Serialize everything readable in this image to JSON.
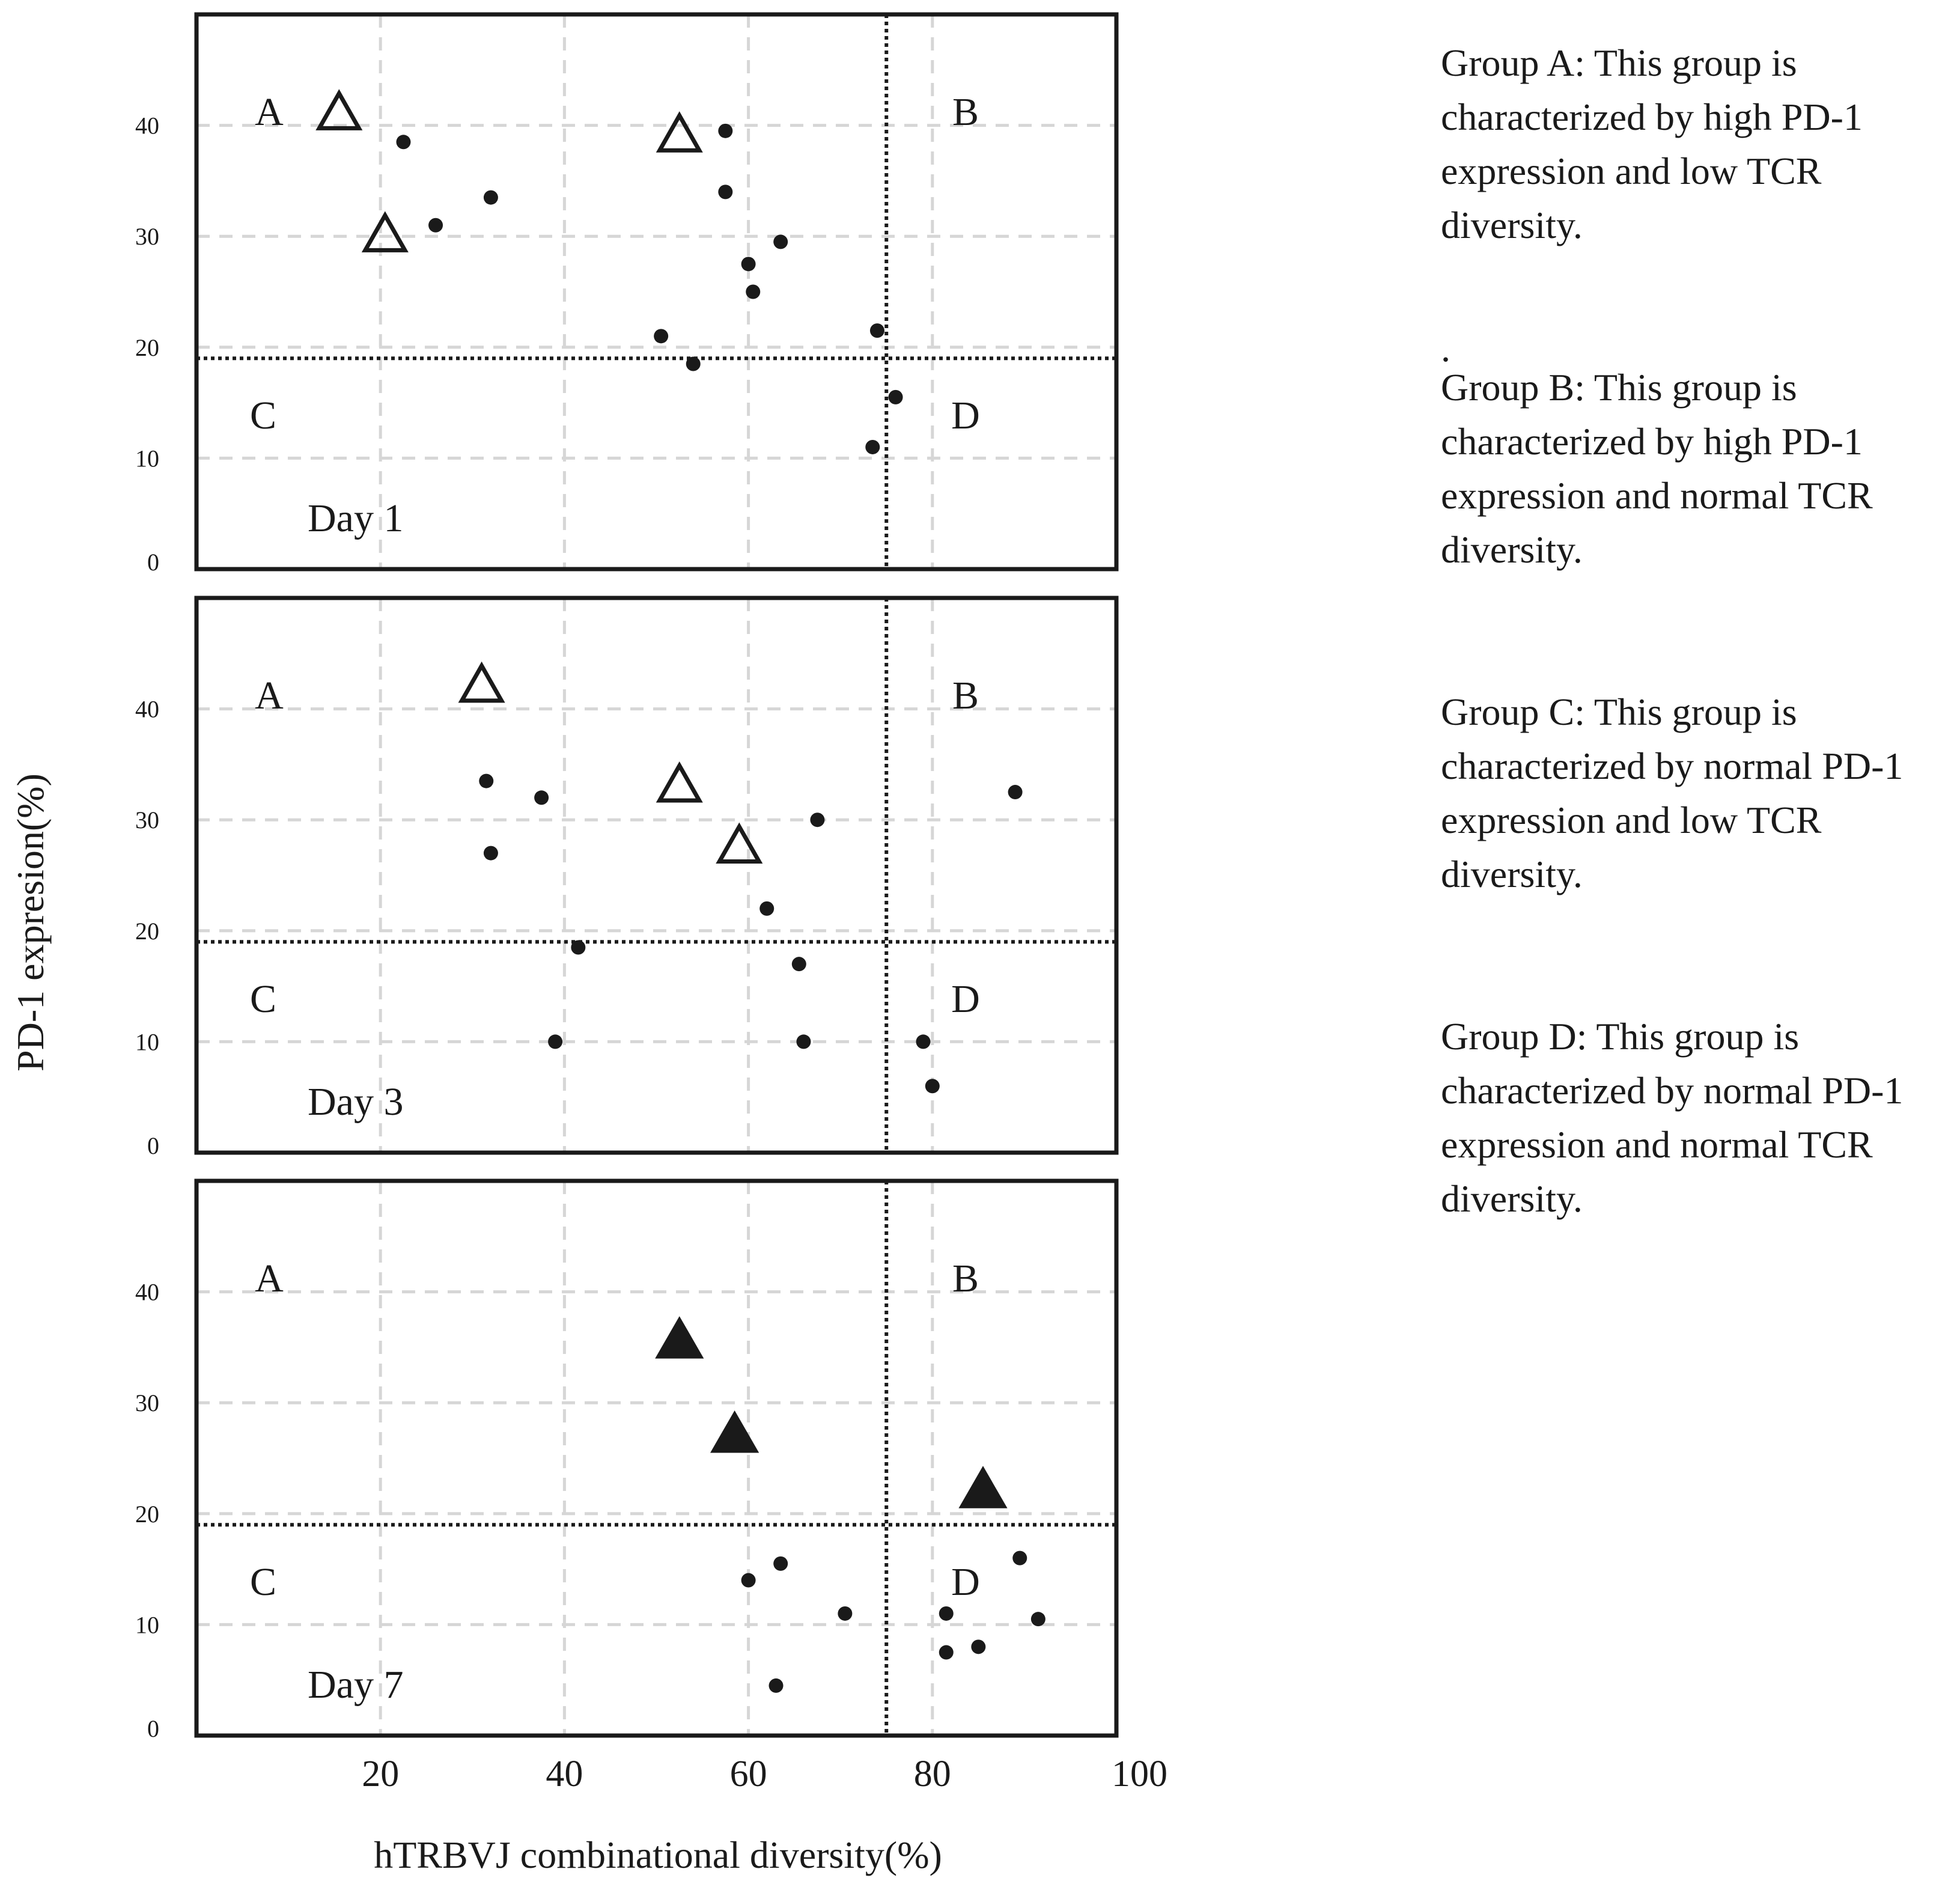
{
  "chart_data": {
    "type": "scatter",
    "xlabel": "hTRBVJ combinational diversity(%)",
    "ylabel": "PD-1 expresion(%)",
    "xlim": [
      0,
      100
    ],
    "ylim": [
      0,
      50
    ],
    "x_ticks": [
      20,
      40,
      60,
      80,
      100
    ],
    "y_ticks": [
      0,
      10,
      20,
      30,
      40
    ],
    "grid": true,
    "threshold_lines": {
      "x": 75,
      "y": 19
    },
    "quadrant_labels": [
      "A",
      "B",
      "C",
      "D"
    ],
    "panels": [
      {
        "title": "Day 1",
        "series": [
          {
            "name": "open triangles",
            "marker": "triangle-open",
            "points": [
              [
                15.5,
                41
              ],
              [
                20.5,
                30
              ],
              [
                52.5,
                39
              ]
            ]
          },
          {
            "name": "dots",
            "marker": "dot",
            "points": [
              [
                22.5,
                38.5
              ],
              [
                26,
                31
              ],
              [
                32,
                33.5
              ],
              [
                57.5,
                39.5
              ],
              [
                57.5,
                34
              ],
              [
                60,
                27.5
              ],
              [
                60.5,
                25
              ],
              [
                63.5,
                29.5
              ],
              [
                50.5,
                21
              ],
              [
                54,
                18.5
              ],
              [
                74,
                21.5
              ],
              [
                76,
                15.5
              ],
              [
                73.5,
                11
              ]
            ]
          }
        ]
      },
      {
        "title": "Day 3",
        "series": [
          {
            "name": "open triangles",
            "marker": "triangle-open",
            "points": [
              [
                31,
                42
              ],
              [
                52.5,
                33
              ],
              [
                59,
                27.5
              ]
            ]
          },
          {
            "name": "dots",
            "marker": "dot",
            "points": [
              [
                31.5,
                33.5
              ],
              [
                32,
                27
              ],
              [
                37.5,
                32
              ],
              [
                67.5,
                30
              ],
              [
                62,
                22
              ],
              [
                41.5,
                18.5
              ],
              [
                39,
                10
              ],
              [
                65.5,
                17
              ],
              [
                66,
                10
              ],
              [
                79,
                10
              ],
              [
                80,
                6
              ],
              [
                89,
                32.5
              ]
            ]
          }
        ]
      },
      {
        "title": "Day 7",
        "series": [
          {
            "name": "filled triangles",
            "marker": "triangle-filled",
            "points": [
              [
                52.5,
                35.5
              ],
              [
                58.5,
                27
              ],
              [
                85.5,
                22
              ]
            ]
          },
          {
            "name": "dots",
            "marker": "dot",
            "points": [
              [
                60,
                14
              ],
              [
                63.5,
                15.5
              ],
              [
                70.5,
                11
              ],
              [
                63,
                4.5
              ],
              [
                81.5,
                11
              ],
              [
                81.5,
                7.5
              ],
              [
                85,
                8
              ],
              [
                89.5,
                16
              ],
              [
                91.5,
                10.5
              ]
            ]
          }
        ]
      }
    ]
  },
  "legend": {
    "group_a": "Group A: This group is characterized by high PD-1 expression and low TCR diversity.",
    "separator": ".",
    "group_b": "Group B: This group is characterized by high PD-1 expression and normal TCR diversity.",
    "group_c": "Group C: This group is characterized by normal PD-1 expression and low TCR diversity.",
    "group_d": "Group D: This group is characterized by normal PD-1 expression and normal TCR diversity."
  },
  "colors": {
    "ink": "#1a1a1a",
    "grid": "#d6d6d6",
    "background": "#ffffff"
  }
}
